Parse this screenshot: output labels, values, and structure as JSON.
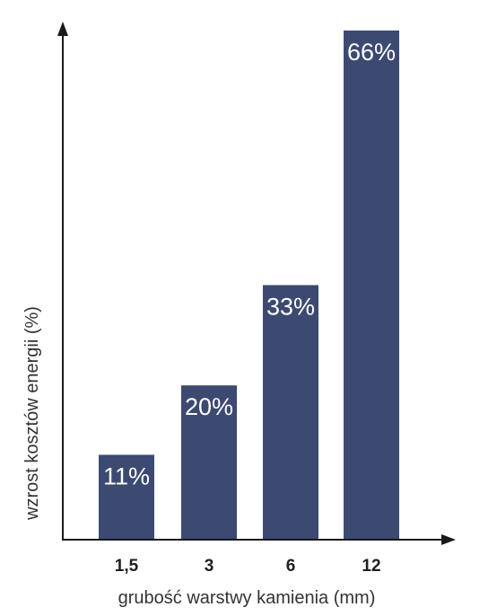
{
  "chart_data": {
    "type": "bar",
    "categories": [
      "1,5",
      "3",
      "6",
      "12"
    ],
    "values": [
      11,
      20,
      33,
      66
    ],
    "value_labels": [
      "11%",
      "20%",
      "33%",
      "66%"
    ],
    "xlabel": "grubość warstwy kamienia (mm)",
    "ylabel": "wzrost kosztów energii (%)",
    "ylim": [
      0,
      66
    ],
    "grid": false,
    "legend": "none",
    "colors": {
      "bar": "#3c4a72",
      "axis": "#1a1a1a",
      "bar_label": "#ffffff"
    }
  }
}
